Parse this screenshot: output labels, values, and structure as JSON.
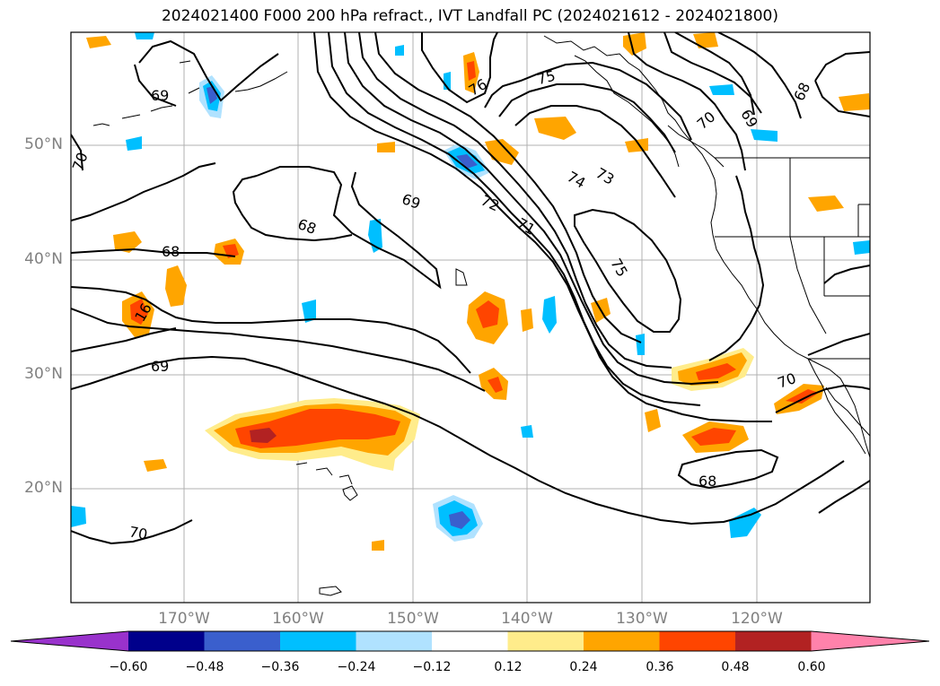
{
  "title": "2024021400 F000 200 hPa refract., IVT Landfall PC (2024021612 - 2024021800)",
  "lat_labels": [
    "50°N",
    "40°N",
    "30°N",
    "20°N"
  ],
  "lon_labels": [
    "170°W",
    "160°W",
    "150°W",
    "140°W",
    "130°W",
    "120°W"
  ],
  "contour_labels": [
    "69",
    "76",
    "75",
    "70",
    "69",
    "68",
    "70",
    "72",
    "71",
    "74",
    "73",
    "69",
    "68",
    "68",
    "75",
    "16",
    "69",
    "70",
    "68",
    "70"
  ],
  "colorbar": {
    "tick_labels": [
      "−0.60",
      "−0.48",
      "−0.36",
      "−0.24",
      "−0.12",
      "0.12",
      "0.24",
      "0.36",
      "0.48",
      "0.60"
    ],
    "colors": [
      "#9932cc",
      "#00008b",
      "#3a5fcd",
      "#00bfff",
      "#b0e2ff",
      "#ffffff",
      "#ffec8b",
      "#ffa500",
      "#ff4500",
      "#b22222",
      "#ff82ab"
    ]
  }
}
